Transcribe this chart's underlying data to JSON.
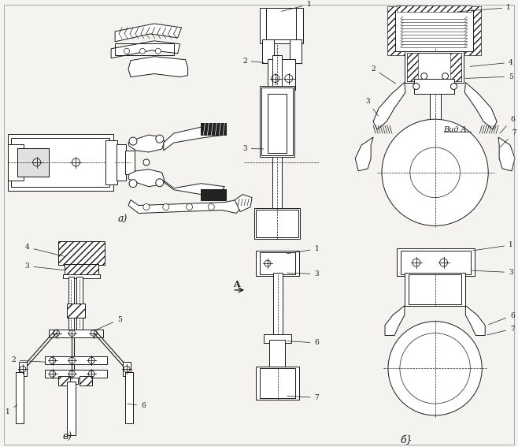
{
  "bg_color": "#f5f3ef",
  "line_color": "#1a1a1a",
  "label_a": "а)",
  "label_b": "в)",
  "label_c": "б}",
  "vid_a": "Вид A",
  "figsize": [
    6.58,
    5.67
  ],
  "dpi": 100
}
